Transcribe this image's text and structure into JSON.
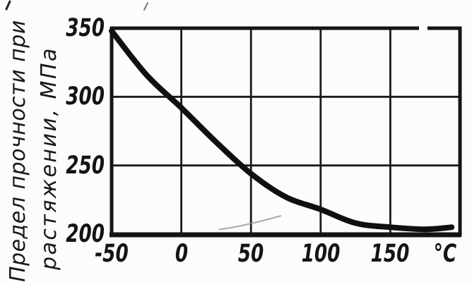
{
  "figure": {
    "background_color": "#fcfcfa",
    "ink_color": "#141414"
  },
  "chart_data": {
    "type": "line",
    "ylabel": "Предел прочности при растяжении, МПа",
    "ylabel_lines": [
      "Предел прочности при",
      "растяжении, МПа"
    ],
    "x_unit_label": "°C",
    "xticks": [
      "-50",
      "0",
      "50",
      "100",
      "150"
    ],
    "yticks": [
      "350",
      "300",
      "250",
      "200"
    ],
    "xlim": [
      -50,
      200
    ],
    "ylim": [
      200,
      350
    ],
    "grid": true,
    "legend": false,
    "curve_color": "#101010",
    "grid_color": "#1a1a1a",
    "series": [
      {
        "name": "tensile-strength-vs-temperature",
        "x": [
          -50,
          -25,
          0,
          25,
          50,
          75,
          100,
          125,
          150,
          175,
          194
        ],
        "y": [
          348,
          316,
          292,
          267,
          244,
          227,
          218,
          208,
          205,
          203.5,
          205
        ]
      }
    ]
  }
}
